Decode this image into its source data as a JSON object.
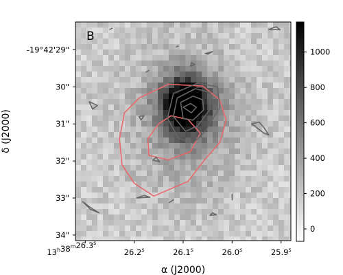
{
  "chart_data": {
    "type": "heatmap",
    "panel_label": "B",
    "colormap": "gray_r",
    "grid": false,
    "xlabel": "α (J2000)",
    "ylabel": "δ (J2000)",
    "x_ticks": [
      {
        "label": "13h38m26.3s",
        "ra_s": 26.3
      },
      {
        "label": "26.2s",
        "ra_s": 26.2
      },
      {
        "label": "26.1s",
        "ra_s": 26.1
      },
      {
        "label": "26.0s",
        "ra_s": 26.0
      },
      {
        "label": "25.9s",
        "ra_s": 25.9
      }
    ],
    "y_ticks": [
      {
        "label": "-19°42'29\"",
        "dec_arcsec": 29
      },
      {
        "label": "30\"",
        "dec_arcsec": 30
      },
      {
        "label": "31\"",
        "dec_arcsec": 31
      },
      {
        "label": "32\"",
        "dec_arcsec": 32
      },
      {
        "label": "33\"",
        "dec_arcsec": 33
      },
      {
        "label": "34\"",
        "dec_arcsec": 34
      }
    ],
    "xlim_ra_s": [
      26.32,
      25.88
    ],
    "ylim_dec_arcsec": [
      28.25,
      34.15
    ],
    "colorbar": {
      "ticks": [
        0,
        200,
        400,
        600,
        800,
        1000
      ],
      "range": [
        -70,
        1170
      ]
    },
    "peak": {
      "ra_s": 26.095,
      "dec_arcsec": 30.5,
      "value": 1150
    },
    "contour_color": "#666666",
    "red_contour_color": "#e8696b",
    "red_contour": [
      [
        26.19,
        30.3
      ],
      [
        26.13,
        29.93
      ],
      [
        26.06,
        29.98
      ],
      [
        26.025,
        30.35
      ],
      [
        26.012,
        30.9
      ],
      [
        26.025,
        31.5
      ],
      [
        26.055,
        31.95
      ],
      [
        26.09,
        32.55
      ],
      [
        26.16,
        32.95
      ],
      [
        26.2,
        32.6
      ],
      [
        26.225,
        32.1
      ],
      [
        26.23,
        31.4
      ],
      [
        26.22,
        30.7
      ]
    ],
    "red_inner_contour": [
      [
        26.15,
        31.0
      ],
      [
        26.125,
        30.78
      ],
      [
        26.09,
        30.88
      ],
      [
        26.065,
        31.25
      ],
      [
        26.085,
        31.75
      ],
      [
        26.13,
        31.97
      ],
      [
        26.17,
        31.85
      ],
      [
        26.172,
        31.4
      ]
    ],
    "gray_contours": [
      [
        [
          26.12,
          30.18
        ],
        [
          26.07,
          29.9
        ],
        [
          26.03,
          30.0
        ],
        [
          26.025,
          30.55
        ],
        [
          26.055,
          31.2
        ],
        [
          26.08,
          31.52
        ],
        [
          26.11,
          31.38
        ],
        [
          26.132,
          30.85
        ]
      ],
      [
        [
          26.112,
          30.3
        ],
        [
          26.075,
          30.05
        ],
        [
          26.045,
          30.15
        ],
        [
          26.045,
          30.6
        ],
        [
          26.07,
          31.05
        ],
        [
          26.095,
          31.2
        ],
        [
          26.12,
          30.8
        ]
      ],
      [
        [
          26.105,
          30.42
        ],
        [
          26.08,
          30.25
        ],
        [
          26.06,
          30.35
        ],
        [
          26.058,
          30.62
        ],
        [
          26.08,
          30.9
        ],
        [
          26.1,
          30.85
        ]
      ],
      [
        [
          26.1,
          30.55
        ],
        [
          26.085,
          30.45
        ],
        [
          26.073,
          30.55
        ],
        [
          26.083,
          30.7
        ]
      ],
      [
        [
          26.19,
          30.8
        ],
        [
          26.18,
          30.78
        ],
        [
          26.186,
          30.9
        ]
      ],
      [
        [
          26.292,
          30.4
        ],
        [
          26.275,
          30.5
        ],
        [
          26.285,
          30.6
        ]
      ],
      [
        [
          25.96,
          31.0
        ],
        [
          25.945,
          30.95
        ],
        [
          25.935,
          31.1
        ],
        [
          25.925,
          31.3
        ],
        [
          25.935,
          31.25
        ]
      ],
      [
        [
          26.305,
          33.1
        ],
        [
          26.29,
          33.25
        ],
        [
          26.272,
          33.4
        ],
        [
          26.29,
          33.3
        ]
      ],
      [
        [
          26.155,
          31.9
        ],
        [
          26.148,
          32.02
        ],
        [
          26.162,
          31.98
        ]
      ],
      [
        [
          26.195,
          33.0
        ],
        [
          26.18,
          32.93
        ],
        [
          26.168,
          32.98
        ]
      ],
      [
        [
          26.04,
          33.4
        ],
        [
          26.032,
          33.45
        ],
        [
          26.045,
          33.47
        ]
      ],
      [
        [
          26.12,
          33.05
        ],
        [
          26.128,
          33.12
        ]
      ],
      [
        [
          26.0,
          32.9
        ],
        [
          26.0,
          33.05
        ]
      ],
      [
        [
          26.083,
          29.35
        ],
        [
          26.076,
          29.4
        ],
        [
          26.085,
          29.44
        ]
      ],
      [
        [
          26.055,
          29.1
        ],
        [
          26.04,
          29.05
        ],
        [
          26.05,
          29.12
        ]
      ],
      [
        [
          25.925,
          28.45
        ],
        [
          25.91,
          28.38
        ],
        [
          25.902,
          28.46
        ]
      ],
      [
        [
          26.11,
          28.9
        ],
        [
          26.114,
          28.92
        ]
      ],
      [
        [
          26.25,
          28.45
        ],
        [
          26.245,
          28.42
        ]
      ],
      [
        [
          26.176,
          29.6
        ],
        [
          26.17,
          29.56
        ]
      ]
    ]
  }
}
